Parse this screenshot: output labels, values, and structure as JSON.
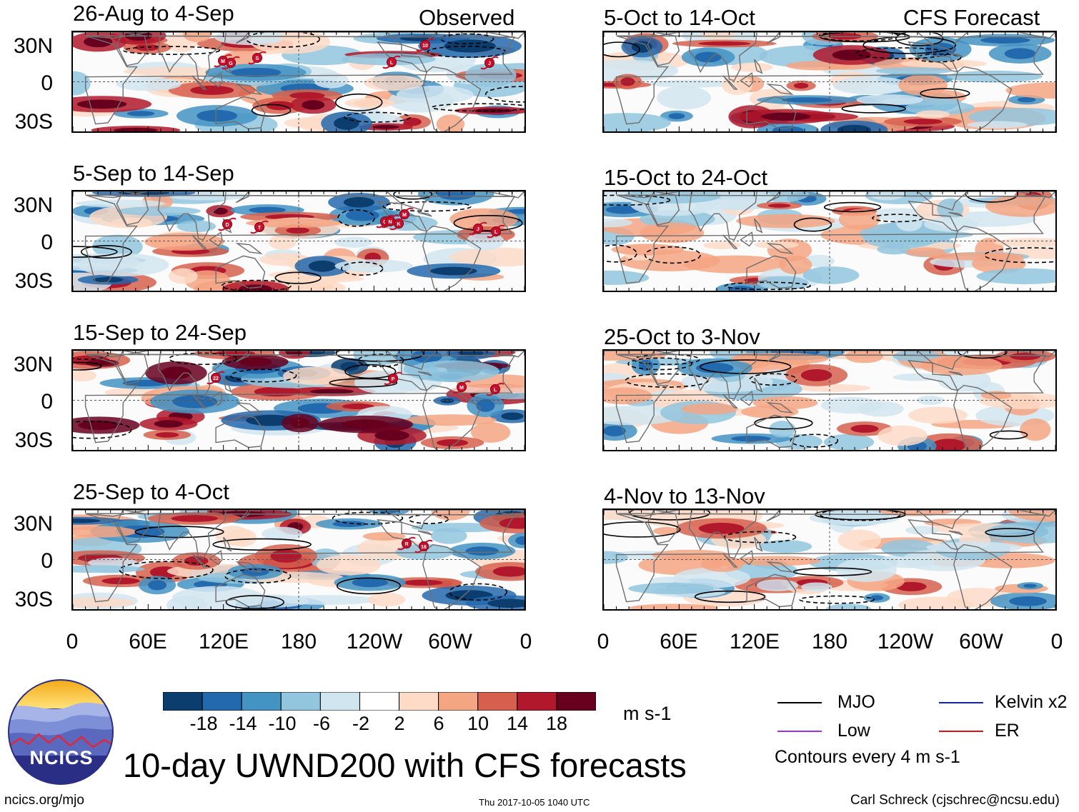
{
  "column_titles": {
    "observed": "Observed",
    "forecast": "CFS Forecast"
  },
  "panels": [
    {
      "id": "obs1",
      "title": "26-Aug to 4-Sep",
      "storms": [
        "M",
        "G",
        "S",
        "L",
        "10",
        "J"
      ]
    },
    {
      "id": "obs2",
      "title": "5-Sep to 14-Sep",
      "storms": [
        "D",
        "T",
        "O",
        "N",
        "K",
        "M",
        "J",
        "L"
      ]
    },
    {
      "id": "obs3",
      "title": "15-Sep to 24-Sep",
      "storms": [
        "22",
        "P",
        "M",
        "L"
      ]
    },
    {
      "id": "obs4",
      "title": "25-Sep to 4-Oct",
      "storms": [
        "R",
        "16"
      ]
    },
    {
      "id": "fc1",
      "title": "5-Oct to 14-Oct"
    },
    {
      "id": "fc2",
      "title": "15-Oct to 24-Oct"
    },
    {
      "id": "fc3",
      "title": "25-Oct to 3-Nov"
    },
    {
      "id": "fc4",
      "title": "4-Nov to 13-Nov"
    }
  ],
  "lat_labels": [
    "30N",
    "0",
    "30S"
  ],
  "lon_labels": [
    "0",
    "60E",
    "120E",
    "180",
    "120W",
    "60W",
    "0"
  ],
  "colorbar": {
    "ticks": [
      "-18",
      "-14",
      "-10",
      "-6",
      "-2",
      "2",
      "6",
      "10",
      "14",
      "18"
    ],
    "colors": [
      "#0b3d6e",
      "#2369ad",
      "#4393c3",
      "#92c5de",
      "#d1e5f0",
      "#ffffff",
      "#fddbc7",
      "#f4a582",
      "#d6604d",
      "#b2182b",
      "#67001f"
    ],
    "units": "m s-1"
  },
  "legend": {
    "mjo": "MJO",
    "low": "Low",
    "kelvin": "Kelvin x2",
    "er": "ER",
    "contours": "Contours every 4 m s-1",
    "colors": {
      "mjo": "#000000",
      "low": "#a030e0",
      "kelvin": "#1020d0",
      "er": "#e01010"
    }
  },
  "logo": {
    "text": "NCICS"
  },
  "main_title": "10-day UWND200 with CFS forecasts",
  "footer": {
    "url": "ncics.org/mjo",
    "timestamp": "Thu 2017-10-05 1040 UTC",
    "author": "Carl Schreck (cjschrec@ncsu.edu)"
  }
}
